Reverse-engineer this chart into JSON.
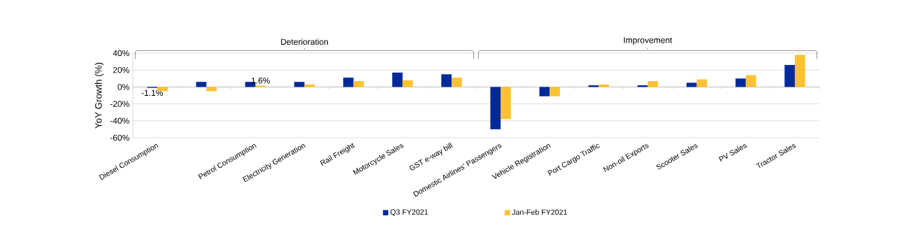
{
  "chart_data": {
    "type": "bar",
    "ylabel": "YoY Growth (%)",
    "categories": [
      "Diesel Consumption",
      null,
      "Petrol Consumption",
      "Electricity Generation",
      "Rail Freight",
      "Motorcycle Sales",
      "GST e-way bill",
      "Domestic Airlines' Passengers",
      "Vehicle Registration",
      "Port Cargo Traffic",
      "Non-oil Exports",
      "Scooter Sales",
      "PV Sales",
      "Tractor Sales"
    ],
    "series": [
      {
        "name": "Q3 FY2021",
        "color": "#002a9a",
        "values": [
          -1.1,
          6,
          6,
          6,
          11,
          17,
          15,
          -50,
          -11,
          2,
          2,
          5,
          10,
          26
        ],
        "value_labels": [
          "-1.1%",
          null,
          null,
          null,
          null,
          null,
          null,
          null,
          null,
          null,
          null,
          null,
          null,
          null
        ]
      },
      {
        "name": "Jan-Feb FY2021",
        "color": "#fcc232",
        "values": [
          -5,
          -5,
          1.6,
          3,
          7,
          8,
          11,
          -38,
          -11,
          3,
          7,
          9,
          14,
          38
        ],
        "value_labels": [
          null,
          null,
          "1.6%",
          null,
          null,
          null,
          null,
          null,
          null,
          null,
          null,
          null,
          null,
          null
        ]
      }
    ],
    "ylim": [
      -60,
      40
    ],
    "yticks": [
      {
        "value": -60,
        "label": "-60%"
      },
      {
        "value": -40,
        "label": "-40%"
      },
      {
        "value": -20,
        "label": "-20%"
      },
      {
        "value": 0,
        "label": "0%"
      },
      {
        "value": 20,
        "label": "20%"
      },
      {
        "value": 40,
        "label": "40%"
      }
    ],
    "grid": "y",
    "legend": "bottom",
    "annotations": [
      "Deterioration",
      "Improvement"
    ]
  }
}
